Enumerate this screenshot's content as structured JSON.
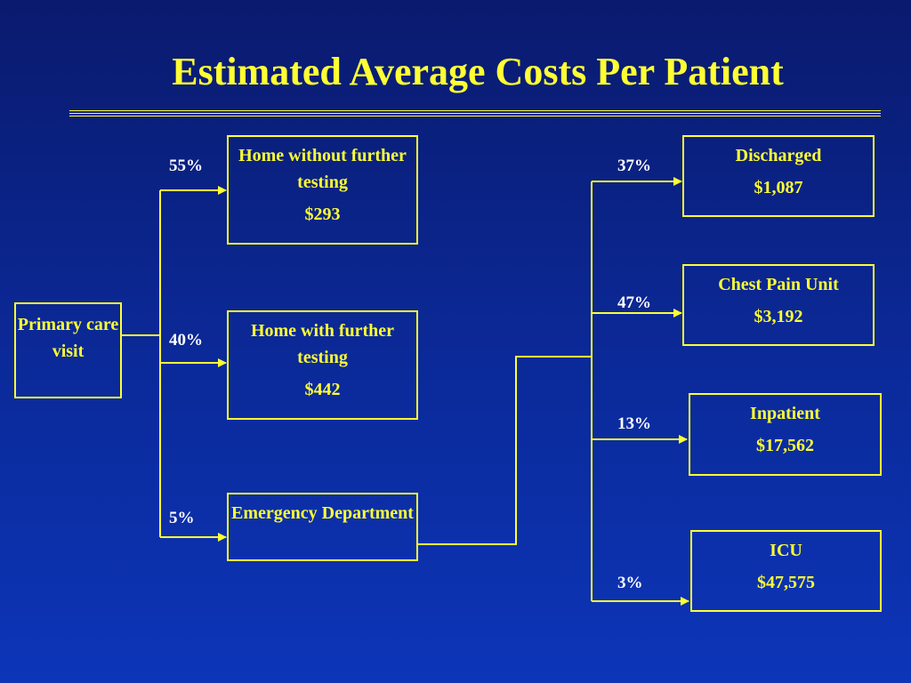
{
  "title": "Estimated Average Costs Per Patient",
  "colors": {
    "background": "#0b2a9a",
    "accent": "#ffff33",
    "percent_text": "#ffffff"
  },
  "nodes": {
    "primary": {
      "label": "Primary care visit"
    },
    "home_without": {
      "label": "Home without further testing",
      "cost": "$293"
    },
    "home_with": {
      "label": "Home with further testing",
      "cost": "$442"
    },
    "ed": {
      "label": "Emergency Department"
    },
    "discharged": {
      "label": "Discharged",
      "cost": "$1,087"
    },
    "chest_pain": {
      "label": "Chest Pain Unit",
      "cost": "$3,192"
    },
    "inpatient": {
      "label": "Inpatient",
      "cost": "$17,562"
    },
    "icu": {
      "label": "ICU",
      "cost": "$47,575"
    }
  },
  "percentages": {
    "home_without": "55%",
    "home_with": "40%",
    "ed": "5%",
    "discharged": "37%",
    "chest_pain": "47%",
    "inpatient": "13%",
    "icu": "3%"
  }
}
